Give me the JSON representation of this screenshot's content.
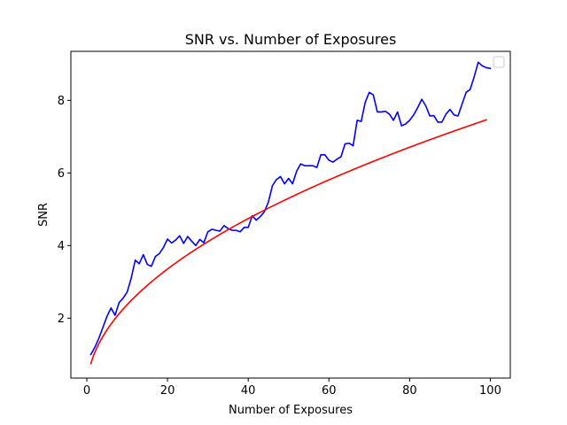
{
  "chart_data": {
    "type": "line",
    "title": "SNR vs. Number of Exposures",
    "xlabel": "Number of Exposures",
    "ylabel": "SNR",
    "xlim": [
      -3.95,
      104.95
    ],
    "ylim": [
      0.35,
      9.35
    ],
    "xticks": [
      0,
      20,
      40,
      60,
      80,
      100
    ],
    "yticks": [
      2,
      4,
      6,
      8
    ],
    "grid": false,
    "legend": {
      "location": "top-right",
      "entries": []
    },
    "series": [
      {
        "color": "#0000ff",
        "x": [
          1,
          2,
          3,
          4,
          5,
          6,
          7,
          8,
          9,
          10,
          11,
          12,
          13,
          14,
          15,
          16,
          17,
          18,
          19,
          20,
          21,
          22,
          23,
          24,
          25,
          26,
          27,
          28,
          29,
          30,
          31,
          32,
          33,
          34,
          35,
          36,
          37,
          38,
          39,
          40,
          41,
          42,
          43,
          44,
          45,
          46,
          47,
          48,
          49,
          50,
          51,
          52,
          53,
          54,
          55,
          56,
          57,
          58,
          59,
          60,
          61,
          62,
          63,
          64,
          65,
          66,
          67,
          68,
          69,
          70,
          71,
          72,
          73,
          74,
          75,
          76,
          77,
          78,
          79,
          80,
          81,
          82,
          83,
          84,
          85,
          86,
          87,
          88,
          89,
          90,
          91,
          92,
          93,
          94,
          95,
          96,
          97,
          98,
          99,
          100
        ],
        "values": [
          1.0,
          1.2,
          1.45,
          1.75,
          2.05,
          2.28,
          2.08,
          2.43,
          2.55,
          2.72,
          3.1,
          3.6,
          3.5,
          3.75,
          3.48,
          3.43,
          3.7,
          3.78,
          3.95,
          4.18,
          4.07,
          4.15,
          4.27,
          4.06,
          4.25,
          4.12,
          4.0,
          4.17,
          4.08,
          4.38,
          4.45,
          4.42,
          4.4,
          4.55,
          4.47,
          4.42,
          4.42,
          4.38,
          4.5,
          4.5,
          4.82,
          4.7,
          4.8,
          4.93,
          5.2,
          5.65,
          5.82,
          5.9,
          5.7,
          5.85,
          5.7,
          6.05,
          6.25,
          6.2,
          6.2,
          6.2,
          6.15,
          6.5,
          6.5,
          6.35,
          6.3,
          6.38,
          6.45,
          6.8,
          6.82,
          6.75,
          7.45,
          7.42,
          7.95,
          8.22,
          8.15,
          7.68,
          7.68,
          7.7,
          7.62,
          7.45,
          7.68,
          7.3,
          7.35,
          7.45,
          7.6,
          7.8,
          8.03,
          7.85,
          7.57,
          7.58,
          7.4,
          7.4,
          7.62,
          7.75,
          7.6,
          7.57,
          7.9,
          8.22,
          8.3,
          8.65,
          9.05,
          8.95,
          8.9,
          8.88
        ]
      },
      {
        "color": "#ff0000",
        "formula": "0.75*sqrt(x)",
        "x_range": [
          1,
          99
        ]
      }
    ]
  }
}
